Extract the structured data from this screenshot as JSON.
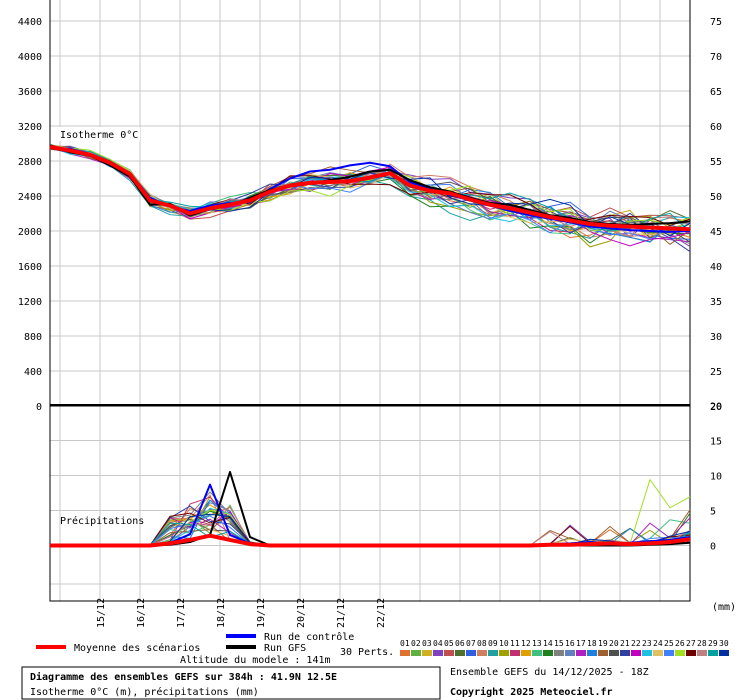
{
  "chart_data": [
    {
      "type": "line",
      "panel": "top",
      "label": "Isotherme 0°C",
      "left_axis_ticks": [
        "4400",
        "4000",
        "3600",
        "3200",
        "2800",
        "2400",
        "2000",
        "1600",
        "1200",
        "800",
        "400",
        "0"
      ],
      "right_axis_ticks": [
        "75",
        "70",
        "65",
        "60",
        "55",
        "50",
        "45",
        "40",
        "35",
        "30",
        "25",
        "20"
      ],
      "ylim": [
        0,
        4600
      ],
      "x_hours": [
        0,
        6,
        12,
        18,
        24,
        30,
        36,
        42,
        48,
        54,
        60,
        66,
        72,
        78,
        84,
        90,
        96,
        102,
        108,
        114,
        120,
        126,
        132,
        138,
        144,
        150,
        156,
        162,
        168,
        174,
        180,
        186,
        192,
        198,
        204,
        210,
        216,
        222,
        228,
        234,
        240,
        246,
        252,
        258,
        264,
        270,
        276,
        282,
        288,
        294,
        300,
        306,
        312,
        318,
        324,
        330,
        336,
        342,
        348,
        354,
        360,
        366,
        372,
        378,
        384
      ],
      "series": [
        {
          "name": "Moyenne des scénarios",
          "values": [
            2960,
            2920,
            2870,
            2780,
            2650,
            2350,
            2290,
            2200,
            2260,
            2300,
            2350,
            2450,
            2520,
            2550,
            2560,
            2570,
            2610,
            2660,
            2520,
            2460,
            2430,
            2360,
            2300,
            2260,
            2210,
            2160,
            2120,
            2080,
            2060,
            2050,
            2040,
            2030,
            2020
          ]
        },
        {
          "name": "Run GFS",
          "values": [
            2980,
            2900,
            2860,
            2750,
            2620,
            2300,
            2310,
            2180,
            2250,
            2290,
            2380,
            2470,
            2510,
            2540,
            2580,
            2620,
            2680,
            2700,
            2580,
            2500,
            2450,
            2380,
            2320,
            2300,
            2240,
            2180,
            2150,
            2100,
            2080,
            2070,
            2080,
            2090,
            2110
          ]
        },
        {
          "name": "Run de contrôle",
          "values": [
            2950,
            2940,
            2880,
            2790,
            2660,
            2380,
            2280,
            2230,
            2290,
            2320,
            2330,
            2480,
            2600,
            2680,
            2700,
            2750,
            2780,
            2740,
            2560,
            2490,
            2410,
            2350,
            2290,
            2230,
            2180,
            2140,
            2100,
            2050,
            2030,
            2010,
            2000,
            1990,
            2000
          ]
        }
      ]
    },
    {
      "type": "line",
      "panel": "bottom",
      "label": "Précipitations",
      "unit": "(mm)",
      "right_axis_ticks": [
        "20",
        "15",
        "10",
        "5",
        "0"
      ],
      "ylim": [
        -8,
        20
      ],
      "series": [
        {
          "name": "Moyenne des scénarios",
          "values": [
            0,
            0,
            0,
            0,
            0,
            0,
            0.3,
            0.8,
            1.4,
            0.8,
            0.2,
            0,
            0,
            0,
            0,
            0,
            0,
            0,
            0,
            0,
            0,
            0,
            0,
            0,
            0,
            0.1,
            0.1,
            0.2,
            0.3,
            0.2,
            0.3,
            0.5,
            0.9
          ]
        },
        {
          "name": "Run GFS",
          "values": [
            0,
            0,
            0,
            0,
            0,
            0,
            0.1,
            0.5,
            1.5,
            10.5,
            1.2,
            0,
            0,
            0,
            0,
            0,
            0,
            0,
            0,
            0,
            0,
            0,
            0,
            0,
            0,
            0,
            0,
            0,
            0,
            0,
            0.1,
            0.2,
            0.4
          ]
        },
        {
          "name": "Run de contrôle",
          "values": [
            0,
            0,
            0,
            0,
            0,
            0,
            0.4,
            1.6,
            8.7,
            1.5,
            0.3,
            0,
            0,
            0,
            0,
            0,
            0,
            0,
            0,
            0,
            0,
            0,
            0,
            0,
            0.1,
            0.2,
            0.3,
            0.5,
            0.2,
            0.4,
            0.6,
            0.8,
            1.2
          ]
        }
      ]
    }
  ],
  "x_labels": [
    "15/12",
    "16/12",
    "17/12",
    "18/12",
    "19/12",
    "20/12",
    "21/12",
    "22/12"
  ],
  "legend": {
    "mean": "Moyenne des scénarios",
    "control": "Run de contrôle",
    "gfs": "Run GFS",
    "perts": "30 Perts.",
    "altitude": "Altitude du modele : 141m",
    "pert_numbers": [
      "01",
      "02",
      "03",
      "04",
      "05",
      "06",
      "07",
      "08",
      "09",
      "10",
      "11",
      "12",
      "13",
      "14",
      "15",
      "16",
      "17",
      "18",
      "19",
      "20",
      "21",
      "22",
      "23",
      "24",
      "25",
      "26",
      "27",
      "28",
      "29",
      "30"
    ],
    "pert_colors": [
      "#e07030",
      "#60b040",
      "#d0b020",
      "#8040c0",
      "#c05050",
      "#507030",
      "#3060e0",
      "#d08060",
      "#20a0a0",
      "#a0a000",
      "#c03070",
      "#e0a000",
      "#40c080",
      "#208020",
      "#808080",
      "#6080c0",
      "#b020c0",
      "#2080e0",
      "#a06030",
      "#505050",
      "#3040a0",
      "#c000c0",
      "#20c0e0",
      "#e0c060",
      "#4080ff",
      "#a0e020",
      "#700000",
      "#c08080",
      "#00a0a0",
      "#0030a0"
    ]
  },
  "colors": {
    "mean": "#ff0000",
    "control": "#0000ff",
    "gfs": "#000000",
    "grid": "#c8c8c8"
  },
  "footer": {
    "title": "Diagramme des ensembles GEFS sur 384h : 41.9N 12.5E",
    "subtitle": "Isotherme 0°C (m), précipitations (mm)",
    "ensemble_run": "Ensemble GEFS du 14/12/2025 - 18Z",
    "copyright": "Copyright 2025 Meteociel.fr"
  }
}
